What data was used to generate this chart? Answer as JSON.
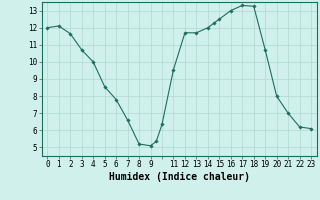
{
  "x": [
    0,
    1,
    2,
    3,
    4,
    5,
    6,
    7,
    8,
    9,
    9.5,
    10,
    11,
    12,
    13,
    14,
    14.5,
    15,
    16,
    17,
    18,
    19,
    20,
    21,
    22,
    23
  ],
  "y": [
    12.0,
    12.1,
    11.65,
    10.7,
    10.0,
    8.55,
    7.8,
    6.6,
    5.2,
    5.1,
    5.35,
    6.35,
    9.55,
    11.7,
    11.7,
    12.0,
    12.25,
    12.5,
    13.0,
    13.3,
    13.25,
    10.7,
    8.0,
    7.0,
    6.2,
    6.1
  ],
  "xlabel": "Humidex (Indice chaleur)",
  "line_color": "#1e6e5e",
  "marker": "D",
  "marker_size": 1.8,
  "bg_color": "#cff0eb",
  "grid_major_color": "#b0d8d0",
  "grid_minor_color": "#b0d8d0",
  "xlim": [
    -0.5,
    23.5
  ],
  "ylim": [
    4.5,
    13.5
  ],
  "yticks": [
    5,
    6,
    7,
    8,
    9,
    10,
    11,
    12,
    13
  ],
  "xticks": [
    0,
    1,
    2,
    3,
    4,
    5,
    6,
    7,
    8,
    9,
    11,
    12,
    13,
    14,
    15,
    16,
    17,
    18,
    19,
    20,
    21,
    22,
    23
  ],
  "tick_fontsize": 5.5,
  "xlabel_fontsize": 7.0
}
